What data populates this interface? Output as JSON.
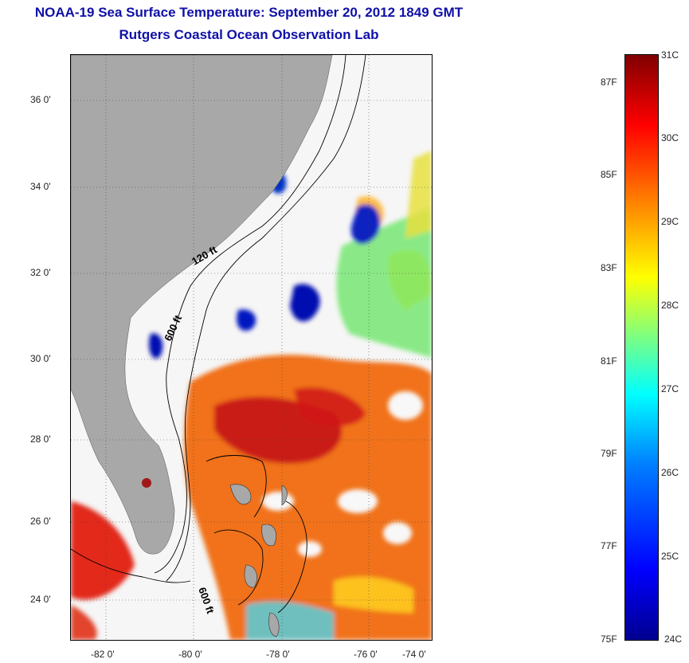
{
  "title_line1": "NOAA-19 Sea Surface Temperature:  September 20, 2012 1849 GMT",
  "title_line2": "Rutgers Coastal Ocean Observation Lab",
  "lat_ticks": [
    "36 0'",
    "34 0'",
    "32 0'",
    "30 0'",
    "28 0'",
    "26 0'",
    "24 0'"
  ],
  "lon_ticks": [
    "-82 0'",
    "-80 0'",
    "-78 0'",
    "-76 0'",
    "-74 0'"
  ],
  "contour_labels": {
    "c120": "120 ft",
    "c600a": "600 ft",
    "c600b": "600 ft"
  },
  "colorbar": {
    "celsius": [
      "31C",
      "30C",
      "29C",
      "28C",
      "27C",
      "26C",
      "25C",
      "24C"
    ],
    "fahrenheit": [
      "87F",
      "85F",
      "83F",
      "81F",
      "79F",
      "77F",
      "75F"
    ]
  },
  "colors": {
    "land": "#a8a8a8",
    "title": "#1010a8"
  }
}
